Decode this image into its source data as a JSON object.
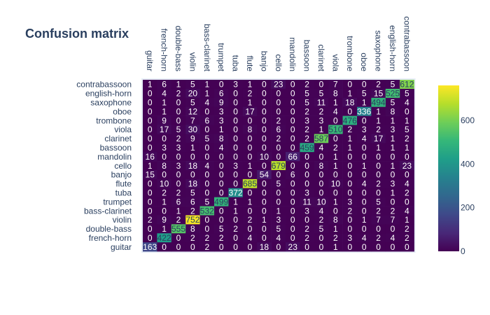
{
  "chart_data": {
    "type": "heatmap",
    "title": "Confusion matrix",
    "xlabel": "",
    "ylabel": "",
    "x_labels": [
      "guitar",
      "french-horn",
      "double-bass",
      "violin",
      "bass-clarinet",
      "trumpet",
      "tuba",
      "flute",
      "banjo",
      "cello",
      "mandolin",
      "bassoon",
      "clarinet",
      "viola",
      "trombone",
      "oboe",
      "saxophone",
      "english-horn",
      "contrabassoon"
    ],
    "y_labels": [
      "contrabassoon",
      "english-horn",
      "saxophone",
      "oboe",
      "trombone",
      "viola",
      "clarinet",
      "bassoon",
      "mandolin",
      "cello",
      "banjo",
      "flute",
      "tuba",
      "trumpet",
      "bass-clarinet",
      "violin",
      "double-bass",
      "french-horn",
      "guitar"
    ],
    "values": [
      [
        1,
        6,
        1,
        5,
        1,
        0,
        3,
        1,
        0,
        23,
        0,
        2,
        0,
        7,
        0,
        0,
        2,
        5,
        612
      ],
      [
        0,
        4,
        2,
        20,
        1,
        6,
        0,
        2,
        0,
        0,
        0,
        5,
        5,
        8,
        1,
        5,
        15,
        525,
        5
      ],
      [
        0,
        1,
        0,
        5,
        4,
        9,
        0,
        1,
        0,
        0,
        0,
        5,
        11,
        1,
        18,
        1,
        494,
        5,
        4
      ],
      [
        0,
        1,
        0,
        12,
        0,
        3,
        0,
        17,
        0,
        0,
        0,
        2,
        2,
        4,
        0,
        336,
        1,
        8,
        0
      ],
      [
        0,
        9,
        0,
        7,
        6,
        3,
        0,
        0,
        0,
        2,
        0,
        3,
        3,
        0,
        476,
        0,
        1,
        1,
        1
      ],
      [
        0,
        17,
        5,
        30,
        0,
        1,
        0,
        8,
        0,
        6,
        0,
        2,
        1,
        510,
        2,
        3,
        2,
        3,
        5
      ],
      [
        0,
        0,
        2,
        9,
        5,
        8,
        0,
        0,
        0,
        2,
        0,
        2,
        587,
        0,
        1,
        4,
        17,
        1,
        2
      ],
      [
        0,
        3,
        3,
        1,
        0,
        4,
        0,
        0,
        0,
        0,
        0,
        459,
        4,
        2,
        1,
        0,
        1,
        1,
        1
      ],
      [
        16,
        0,
        0,
        0,
        0,
        0,
        0,
        0,
        10,
        0,
        66,
        0,
        0,
        1,
        0,
        0,
        0,
        0,
        0
      ],
      [
        1,
        8,
        3,
        18,
        4,
        0,
        3,
        1,
        0,
        679,
        0,
        0,
        8,
        1,
        0,
        1,
        0,
        1,
        23
      ],
      [
        15,
        0,
        0,
        0,
        0,
        0,
        0,
        0,
        54,
        0,
        6,
        0,
        0,
        0,
        0,
        0,
        0,
        0,
        0
      ],
      [
        0,
        10,
        0,
        18,
        0,
        0,
        0,
        685,
        0,
        5,
        0,
        0,
        0,
        10,
        0,
        4,
        2,
        3,
        4
      ],
      [
        0,
        2,
        2,
        5,
        0,
        0,
        372,
        0,
        0,
        0,
        0,
        3,
        0,
        0,
        0,
        0,
        0,
        1,
        2
      ],
      [
        0,
        1,
        6,
        6,
        5,
        499,
        1,
        1,
        0,
        0,
        0,
        11,
        10,
        1,
        3,
        0,
        5,
        0,
        0
      ],
      [
        0,
        0,
        1,
        2,
        532,
        0,
        1,
        0,
        0,
        1,
        0,
        3,
        4,
        0,
        2,
        0,
        2,
        2,
        4
      ],
      [
        2,
        9,
        2,
        752,
        0,
        0,
        0,
        2,
        1,
        3,
        0,
        0,
        2,
        8,
        0,
        1,
        7,
        7,
        1
      ],
      [
        0,
        1,
        555,
        8,
        0,
        5,
        2,
        0,
        0,
        5,
        0,
        2,
        5,
        1,
        0,
        0,
        0,
        0,
        2
      ],
      [
        0,
        422,
        0,
        2,
        2,
        2,
        0,
        4,
        0,
        4,
        0,
        2,
        0,
        2,
        3,
        4,
        2,
        4,
        2
      ],
      [
        163,
        0,
        0,
        0,
        2,
        0,
        0,
        0,
        18,
        0,
        23,
        0,
        0,
        1,
        0,
        0,
        0,
        0,
        0
      ]
    ],
    "colorscale": "viridis",
    "zlim": [
      0,
      760
    ],
    "colorbar_ticks": [
      0,
      200,
      400,
      600
    ],
    "show_text": true
  },
  "colors": {
    "title": "#2a3f5f",
    "text": "#2a3f5f",
    "cell_text_light": "#ffffff",
    "cell_text_dark": "#2a3f5f",
    "plot_bg": "#e5ecf6"
  }
}
